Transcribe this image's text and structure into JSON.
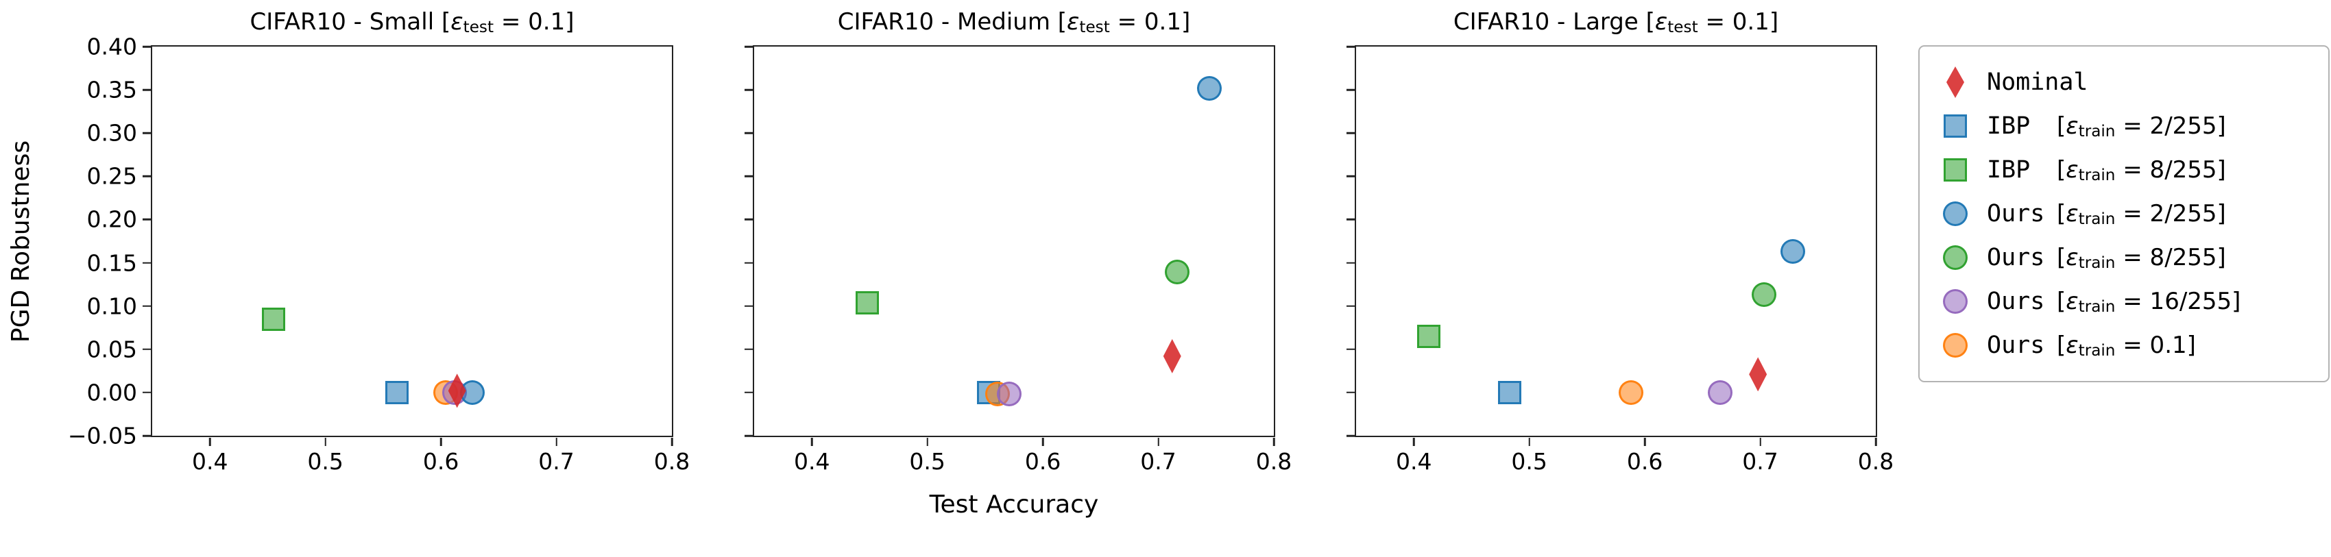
{
  "figure": {
    "xlabel": "Test Accuracy",
    "ylabel": "PGD Robustness",
    "axis_color": "#222222",
    "x_ticks": [
      {
        "value": 0.4,
        "label": "0.4"
      },
      {
        "value": 0.5,
        "label": "0.5"
      },
      {
        "value": 0.6,
        "label": "0.6"
      },
      {
        "value": 0.7,
        "label": "0.7"
      },
      {
        "value": 0.8,
        "label": "0.8"
      }
    ],
    "y_ticks": [
      {
        "value": 0.4,
        "label": "0.40"
      },
      {
        "value": 0.35,
        "label": "0.35"
      },
      {
        "value": 0.3,
        "label": "0.30"
      },
      {
        "value": 0.25,
        "label": "0.25"
      },
      {
        "value": 0.2,
        "label": "0.20"
      },
      {
        "value": 0.15,
        "label": "0.15"
      },
      {
        "value": 0.1,
        "label": "0.10"
      },
      {
        "value": 0.05,
        "label": "0.05"
      },
      {
        "value": 0.0,
        "label": "0.00"
      },
      {
        "value": -0.05,
        "label": "−0.05"
      }
    ]
  },
  "series": {
    "nominal": {
      "full_label": "Nominal",
      "name": "Nominal",
      "eps": null,
      "marker": "diamond",
      "color": "#d62728"
    },
    "ibp_2_255": {
      "full_label": "IBP [ε_train = 2/255]",
      "name": "IBP",
      "eps": {
        "pre": "[",
        "sym": "ε",
        "sub": "train",
        "post": " = 2/255]"
      },
      "marker": "square",
      "color": "#1f77b4"
    },
    "ibp_8_255": {
      "full_label": "IBP [ε_train = 8/255]",
      "name": "IBP",
      "eps": {
        "pre": "[",
        "sym": "ε",
        "sub": "train",
        "post": " = 8/255]"
      },
      "marker": "square",
      "color": "#2ca02c"
    },
    "ours_2_255": {
      "full_label": "Ours [ε_train = 2/255]",
      "name": "Ours",
      "eps": {
        "pre": "[",
        "sym": "ε",
        "sub": "train",
        "post": " = 2/255]"
      },
      "marker": "circle",
      "color": "#1f77b4"
    },
    "ours_8_255": {
      "full_label": "Ours [ε_train = 8/255]",
      "name": "Ours",
      "eps": {
        "pre": "[",
        "sym": "ε",
        "sub": "train",
        "post": " = 8/255]"
      },
      "marker": "circle",
      "color": "#2ca02c"
    },
    "ours_16_255": {
      "full_label": "Ours [ε_train = 16/255]",
      "name": "Ours",
      "eps": {
        "pre": "[",
        "sym": "ε",
        "sub": "train",
        "post": " = 16/255]"
      },
      "marker": "circle",
      "color": "#9467bd"
    },
    "ours_0_1": {
      "full_label": "Ours [ε_train = 0.1]",
      "name": "Ours",
      "eps": {
        "pre": "[",
        "sym": "ε",
        "sub": "train",
        "post": " = 0.1]"
      },
      "marker": "circle",
      "color": "#ff7f0e"
    }
  },
  "legend": {
    "position": "right",
    "order": [
      "nominal",
      "ibp_2_255",
      "ibp_8_255",
      "ours_2_255",
      "ours_8_255",
      "ours_16_255",
      "ours_0_1"
    ]
  },
  "chart_data": [
    {
      "type": "scatter",
      "title": "CIFAR10 - Small [ε_test = 0.1]",
      "title_parts": {
        "pre": "CIFAR10 - Small [",
        "sym": "ε",
        "sub": "test",
        "post": " = 0.1]"
      },
      "xlim": [
        0.35,
        0.8
      ],
      "ylim": [
        -0.05,
        0.4
      ],
      "points": [
        {
          "series": "ibp_8_255",
          "x": 0.455,
          "y": 0.085
        },
        {
          "series": "ibp_2_255",
          "x": 0.562,
          "y": 0.0
        },
        {
          "series": "ours_0_1",
          "x": 0.604,
          "y": 0.0
        },
        {
          "series": "ours_16_255",
          "x": 0.612,
          "y": 0.0
        },
        {
          "series": "ours_2_255",
          "x": 0.627,
          "y": 0.0
        },
        {
          "series": "nominal",
          "x": 0.614,
          "y": 0.002
        }
      ]
    },
    {
      "type": "scatter",
      "title": "CIFAR10 - Medium [ε_test = 0.1]",
      "title_parts": {
        "pre": "CIFAR10 - Medium [",
        "sym": "ε",
        "sub": "test",
        "post": " = 0.1]"
      },
      "xlim": [
        0.35,
        0.8
      ],
      "ylim": [
        -0.05,
        0.4
      ],
      "points": [
        {
          "series": "ibp_8_255",
          "x": 0.448,
          "y": 0.104
        },
        {
          "series": "ibp_2_255",
          "x": 0.553,
          "y": 0.0
        },
        {
          "series": "ours_0_1",
          "x": 0.561,
          "y": -0.002
        },
        {
          "series": "ours_16_255",
          "x": 0.571,
          "y": -0.002
        },
        {
          "series": "ours_8_255",
          "x": 0.716,
          "y": 0.139
        },
        {
          "series": "ours_2_255",
          "x": 0.744,
          "y": 0.352
        },
        {
          "series": "nominal",
          "x": 0.712,
          "y": 0.042
        }
      ]
    },
    {
      "type": "scatter",
      "title": "CIFAR10 - Large [ε_test = 0.1]",
      "title_parts": {
        "pre": "CIFAR10 - Large [",
        "sym": "ε",
        "sub": "test",
        "post": " = 0.1]"
      },
      "xlim": [
        0.35,
        0.8
      ],
      "ylim": [
        -0.05,
        0.4
      ],
      "points": [
        {
          "series": "ibp_8_255",
          "x": 0.413,
          "y": 0.065
        },
        {
          "series": "ibp_2_255",
          "x": 0.483,
          "y": 0.0
        },
        {
          "series": "ours_0_1",
          "x": 0.588,
          "y": 0.0
        },
        {
          "series": "ours_16_255",
          "x": 0.665,
          "y": 0.0
        },
        {
          "series": "ours_8_255",
          "x": 0.703,
          "y": 0.113
        },
        {
          "series": "ours_2_255",
          "x": 0.728,
          "y": 0.163
        },
        {
          "series": "nominal",
          "x": 0.698,
          "y": 0.021
        }
      ]
    }
  ]
}
